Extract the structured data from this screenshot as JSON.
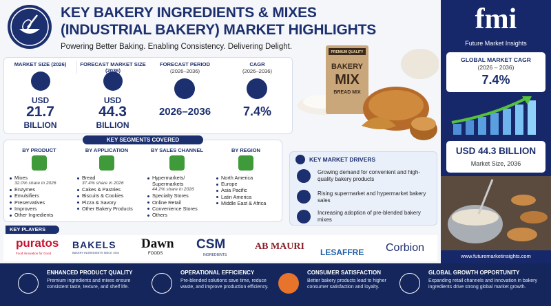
{
  "header": {
    "title_line1": "KEY BAKERY INGREDIENTS & MIXES",
    "title_line2": "(INDUSTRIAL BAKERY) MARKET HIGHLIGHTS",
    "tagline": "Powering Better Baking. Enabling Consistency. Delivering Delight."
  },
  "stats": [
    {
      "label": "MARKET SIZE (2026)",
      "prefix": "USD",
      "value": "21.7",
      "suffix": "BILLION"
    },
    {
      "label": "FORECAST MARKET SIZE (2036)",
      "prefix": "USD",
      "value": "44.3",
      "suffix": "BILLION"
    },
    {
      "label": "FORECAST PERIOD",
      "sublabel": "(2026–2036)",
      "value": "2026–2036"
    },
    {
      "label": "CAGR",
      "sublabel": "(2026–2036)",
      "value": "7.4%"
    }
  ],
  "product_image": {
    "badge": "PREMIUM QUALITY",
    "line1": "BAKERY",
    "line2": "MIX",
    "line3": "BREAD MIX"
  },
  "segments": {
    "title": "KEY SEGMENTS COVERED",
    "columns": [
      {
        "heading": "BY PRODUCT",
        "items": [
          "Mixes",
          "Enzymes",
          "Emulsifiers",
          "Preservatives",
          "Improvers",
          "Other Ingredients"
        ],
        "note": "32.0% share in 2026"
      },
      {
        "heading": "BY APPLICATION",
        "items": [
          "Bread",
          "Cakes & Pastries",
          "Biscuits & Cookies",
          "Pizza & Savory",
          "Other Bakery Products"
        ],
        "note": "37.4% share in 2026"
      },
      {
        "heading": "BY SALES CHANNEL",
        "items": [
          "Hypermarkets/ Supermarkets",
          "Specialty Stores",
          "Online Retail",
          "Convenience Stores",
          "Others"
        ],
        "note": "44.2% share in 2026"
      },
      {
        "heading": "BY REGION",
        "items": [
          "North America",
          "Europe",
          "Asia Pacific",
          "Latin America",
          "Middle East & Africa"
        ]
      }
    ]
  },
  "drivers": {
    "title": "KEY MARKET DRIVERS",
    "items": [
      "Growing demand for convenient and high-quality bakery products",
      "Rising supermarket and hypermarket bakery sales",
      "Increasing adoption of pre-blended bakery mixes"
    ]
  },
  "players": {
    "title": "KEY PLAYERS",
    "puratos": "puratos",
    "puratos_tag": "Food Innovation for Good",
    "bakels": "BAKELS",
    "bakels_tag": "BAKERY INGREDIENTS SINCE 1904",
    "dawn": "Dawn",
    "dawn_tag": "FOODS",
    "csm": "CSM",
    "csm_tag": "INGREDIENTS",
    "abmauri": "AB MAURI",
    "lesaffre": "LESAFFRE",
    "corbion": "Corbion"
  },
  "sidebar": {
    "logo": "fmi",
    "brand": "Future Market Insights",
    "cagr_label": "GLOBAL MARKET CAGR",
    "cagr_period": "(2026 – 2036)",
    "cagr_value": "7.4%",
    "size_value": "USD 44.3 BILLION",
    "size_label": "Market Size, 2036",
    "url": "www.futuremarketinsights.com"
  },
  "benefits": [
    {
      "title": "ENHANCED PRODUCT QUALITY",
      "text": "Premium ingredients and mixes ensure consistent taste, texture, and shelf life."
    },
    {
      "title": "OPERATIONAL EFFICIENCY",
      "text": "Pre-blended solutions save time, reduce waste, and improve production efficiency."
    },
    {
      "title": "CONSUMER SATISFACTION",
      "text": "Better bakery products lead to higher consumer satisfaction and loyalty."
    },
    {
      "title": "GLOBAL GROWTH OPPORTUNITY",
      "text": "Expanding retail channels and innovation in bakery ingredients drive strong global market growth."
    }
  ]
}
